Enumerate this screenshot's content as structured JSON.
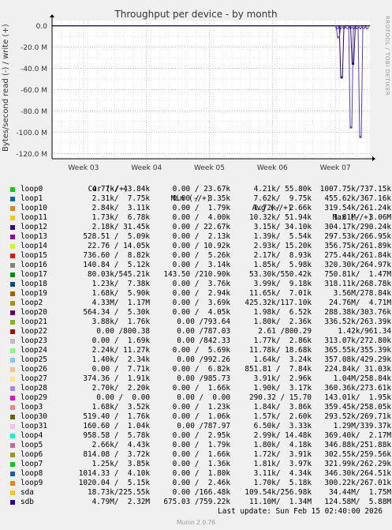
{
  "chart_data": {
    "type": "line",
    "title": "Throughput per device - by month",
    "ylabel": "Bytes/second read (-) / write (+)",
    "ylim": [
      -125,
      5
    ],
    "y_ticks": [
      "0.0",
      "-20.0 M",
      "-40.0 M",
      "-60.0 M",
      "-80.0 M",
      "-100.0 M",
      "-120.0 M"
    ],
    "y_tick_values": [
      0,
      -20,
      -40,
      -60,
      -80,
      -100,
      -120
    ],
    "x_ticks": [
      "Week 03",
      "Week 04",
      "Week 05",
      "Week 06",
      "Week 07"
    ],
    "x_tick_values": [
      3,
      4,
      5,
      6,
      7
    ],
    "xlim": [
      2.5,
      7.55
    ],
    "spikes": [
      {
        "series": "sda",
        "x": 7.1,
        "y": -48
      },
      {
        "series": "sdb",
        "x": 7.25,
        "y": -95
      },
      {
        "series": "sdb",
        "x": 7.4,
        "y": -104
      },
      {
        "series": "sda",
        "x": 7.28,
        "y": -35
      },
      {
        "series": "sdb",
        "x": 7.05,
        "y": -10
      }
    ],
    "series_colors": {
      "sda": "#2a0066",
      "sdb": "#5a3fb0"
    },
    "grid": true
  },
  "side_label": "RRDTOOL / TOBI OETIKER",
  "legend": {
    "header": {
      "cur": "Cur (-/+)",
      "min": "Min (-/+)",
      "avg": "Avg (-/+)",
      "max": "Max (-/+)"
    },
    "rows": [
      {
        "name": "loop0",
        "color": "#00cc00",
        "cur": "4.77k/ 43.84k",
        "min": "0.00 / 23.67k",
        "avg": "4.21k/ 55.80k",
        "max": "1007.75k/737.15k"
      },
      {
        "name": "loop1",
        "color": "#0066b3",
        "cur": "2.31k/  7.75k",
        "min": "0.00 /  3.35k",
        "avg": "7.62k/  9.75k",
        "max": "455.62k/367.16k"
      },
      {
        "name": "loop10",
        "color": "#ff8000",
        "cur": "2.84k/  3.11k",
        "min": "0.00 /  1.79k",
        "avg": "1.72k/  2.66k",
        "max": "319.54k/261.24k"
      },
      {
        "name": "loop11",
        "color": "#ffcc00",
        "cur": "1.73k/  6.78k",
        "min": "0.00 /  4.00k",
        "avg": "10.32k/ 51.94k",
        "max": "1.81M/  3.06M"
      },
      {
        "name": "loop12",
        "color": "#330099",
        "cur": "2.18k/ 31.45k",
        "min": "0.00 / 22.67k",
        "avg": "3.15k/ 34.10k",
        "max": "304.17k/290.24k"
      },
      {
        "name": "loop13",
        "color": "#990099",
        "cur": "528.51 /  5.09k",
        "min": "0.00 /  2.13k",
        "avg": "1.39k/  5.54k",
        "max": "297.53k/266.95k"
      },
      {
        "name": "loop14",
        "color": "#ccff00",
        "cur": "22.76 / 14.05k",
        "min": "0.00 / 10.92k",
        "avg": "2.93k/ 15.20k",
        "max": "356.75k/261.89k"
      },
      {
        "name": "loop15",
        "color": "#ff0000",
        "cur": "736.60 /  8.82k",
        "min": "0.00 /  5.26k",
        "avg": "2.17k/  8.93k",
        "max": "275.44k/261.84k"
      },
      {
        "name": "loop16",
        "color": "#808080",
        "cur": "140.84 /  5.12k",
        "min": "0.00 /  3.14k",
        "avg": "1.85k/  5.98k",
        "max": "320.30k/264.97k"
      },
      {
        "name": "loop17",
        "color": "#008f00",
        "cur": "80.03k/545.21k",
        "min": "143.50 /210.90k",
        "avg": "53.30k/550.42k",
        "max": "750.81k/  1.47M"
      },
      {
        "name": "loop18",
        "color": "#00487d",
        "cur": "1.23k/  7.38k",
        "min": "0.00 /  3.76k",
        "avg": "3.99k/  9.18k",
        "max": "318.11k/268.78k"
      },
      {
        "name": "loop19",
        "color": "#b35a00",
        "cur": "1.68k/  5.90k",
        "min": "0.00 /  2.94k",
        "avg": "11.65k/  7.01k",
        "max": "3.56M/278.84k"
      },
      {
        "name": "loop2",
        "color": "#b38f00",
        "cur": "4.33M/  1.17M",
        "min": "0.00 /  3.69k",
        "avg": "425.32k/117.10k",
        "max": "24.76M/  4.71M"
      },
      {
        "name": "loop20",
        "color": "#6b006b",
        "cur": "564.34 /  5.30k",
        "min": "0.00 /  4.05k",
        "avg": "1.98k/  6.52k",
        "max": "288.38k/303.76k"
      },
      {
        "name": "loop21",
        "color": "#8fb300",
        "cur": "3.88k/  1.76k",
        "min": "0.00 /793.64",
        "avg": "1.80k/  2.36k",
        "max": "336.52k/263.39k"
      },
      {
        "name": "loop22",
        "color": "#b30000",
        "cur": "0.00 /800.38",
        "min": "0.00 /787.03",
        "avg": "2.61 /800.29",
        "max": "1.42k/961.34"
      },
      {
        "name": "loop23",
        "color": "#bebebe",
        "cur": "0.00 /  1.69k",
        "min": "0.00 /842.33",
        "avg": "1.77k/  2.86k",
        "max": "313.07k/272.80k"
      },
      {
        "name": "loop24",
        "color": "#80ff80",
        "cur": "2.24k/ 11.27k",
        "min": "0.00 /  5.69k",
        "avg": "11.78k/ 18.68k",
        "max": "365.55k/355.39k"
      },
      {
        "name": "loop25",
        "color": "#80c9ff",
        "cur": "1.40k/  2.34k",
        "min": "0.00 /992.26",
        "avg": "1.64k/  3.24k",
        "max": "357.08k/429.29k"
      },
      {
        "name": "loop26",
        "color": "#ffc080",
        "cur": "0.00 /  7.71k",
        "min": "0.00 /  6.82k",
        "avg": "851.81 /  7.84k",
        "max": "224.84k/ 31.03k"
      },
      {
        "name": "loop27",
        "color": "#ffe680",
        "cur": "374.36 /  1.91k",
        "min": "0.00 /985.73",
        "avg": "3.91k/  2.96k",
        "max": "1.04M/258.84k"
      },
      {
        "name": "loop28",
        "color": "#aa80ff",
        "cur": "2.70k/  2.20k",
        "min": "0.00 /  1.66k",
        "avg": "1.90k/  3.17k",
        "max": "360.36k/273.61k"
      },
      {
        "name": "loop29",
        "color": "#ee00cc",
        "cur": "0.00 /  0.00",
        "min": "0.00 /  0.00",
        "avg": "290.32 / 15.70",
        "max": "143.01k/  1.95k"
      },
      {
        "name": "loop3",
        "color": "#ff8080",
        "cur": "1.68k/  3.52k",
        "min": "0.00 /  1.23k",
        "avg": "1.84k/  3.86k",
        "max": "359.45k/258.05k"
      },
      {
        "name": "loop30",
        "color": "#666600",
        "cur": "519.40 /  1.76k",
        "min": "0.00 /  1.06k",
        "avg": "1.57k/  2.60k",
        "max": "293.52k/269.71k"
      },
      {
        "name": "loop31",
        "color": "#ffbfff",
        "cur": "160.60 /  1.04k",
        "min": "0.00 /787.97",
        "avg": "6.50k/  3.33k",
        "max": "1.29M/339.37k"
      },
      {
        "name": "loop4",
        "color": "#00ffcc",
        "cur": "958.58 /  5.78k",
        "min": "0.00 /  2.95k",
        "avg": "2.99k/ 14.48k",
        "max": "369.40k/  2.17M"
      },
      {
        "name": "loop5",
        "color": "#cc6699",
        "cur": "2.66k/  4.43k",
        "min": "0.00 /  1.79k",
        "avg": "1.80k/  4.18k",
        "max": "346.88k/251.88k"
      },
      {
        "name": "loop6",
        "color": "#999900",
        "cur": "814.08 /  3.72k",
        "min": "0.00 /  1.66k",
        "avg": "1.72k/  3.91k",
        "max": "302.55k/259.56k"
      },
      {
        "name": "loop7",
        "color": "#00cc00",
        "cur": "1.25k/  3.85k",
        "min": "0.00 /  1.36k",
        "avg": "1.81k/  3.97k",
        "max": "321.99k/262.29k"
      },
      {
        "name": "loop8",
        "color": "#0066b3",
        "cur": "1014.33 /  4.10k",
        "min": "0.00 /  1.80k",
        "avg": "3.11k/  4.34k",
        "max": "346.30k/264.51k"
      },
      {
        "name": "loop9",
        "color": "#ff8000",
        "cur": "1020.04 /  5.15k",
        "min": "0.00 /  2.46k",
        "avg": "1.70k/  5.18k",
        "max": "300.22k/267.01k"
      },
      {
        "name": "sda",
        "color": "#ffcc00",
        "cur": "18.73k/225.55k",
        "min": "0.00 /166.48k",
        "avg": "109.54k/256.98k",
        "max": "34.44M/  1.75M"
      },
      {
        "name": "sdb",
        "color": "#330099",
        "cur": "4.79M/  2.32M",
        "min": "675.03 /759.22k",
        "avg": "11.10M/  1.34M",
        "max": "124.58M/  5.88M"
      }
    ]
  },
  "footer": {
    "last_update": "Last update: Sun Feb 15 02:40:00 2026",
    "munin": "Munin 2.0.76"
  }
}
